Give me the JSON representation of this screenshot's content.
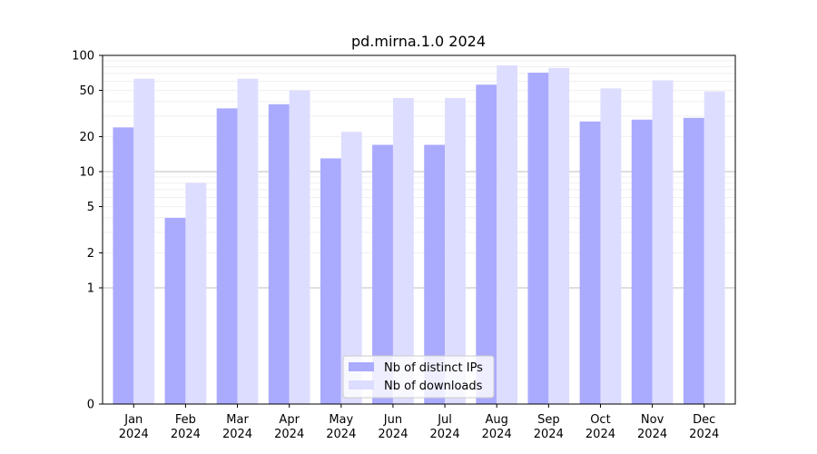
{
  "chart_data": {
    "type": "bar",
    "title": "pd.mirna.1.0 2024",
    "xlabel": "",
    "ylabel": "",
    "y_scale": "symlog",
    "ylim": [
      0,
      100
    ],
    "y_ticks": [
      0,
      1,
      2,
      5,
      10,
      20,
      50,
      100
    ],
    "categories": [
      [
        "Jan",
        "2024"
      ],
      [
        "Feb",
        "2024"
      ],
      [
        "Mar",
        "2024"
      ],
      [
        "Apr",
        "2024"
      ],
      [
        "May",
        "2024"
      ],
      [
        "Jun",
        "2024"
      ],
      [
        "Jul",
        "2024"
      ],
      [
        "Aug",
        "2024"
      ],
      [
        "Sep",
        "2024"
      ],
      [
        "Oct",
        "2024"
      ],
      [
        "Nov",
        "2024"
      ],
      [
        "Dec",
        "2024"
      ]
    ],
    "series": [
      {
        "name": "Nb of distinct IPs",
        "color": "#aaaaff",
        "values": [
          24,
          4,
          35,
          38,
          13,
          17,
          17,
          56,
          71,
          27,
          28,
          29
        ]
      },
      {
        "name": "Nb of downloads",
        "color": "#ddddff",
        "values": [
          63,
          8,
          63,
          50,
          22,
          43,
          43,
          82,
          78,
          52,
          61,
          49
        ]
      }
    ],
    "legend_position": "bottom-center",
    "grid": "y"
  }
}
